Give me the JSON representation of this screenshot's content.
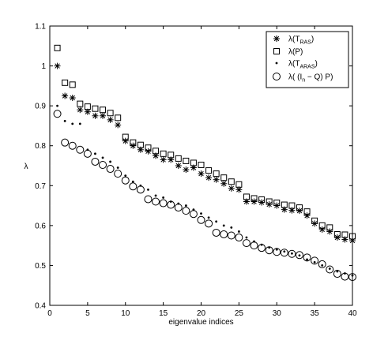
{
  "chart_data": {
    "type": "scatter",
    "title": "",
    "xlabel": "eigenvalue indices",
    "ylabel": "λ",
    "xlim": [
      0,
      40
    ],
    "ylim": [
      0.4,
      1.1
    ],
    "x_ticks": [
      "0",
      "5",
      "10",
      "15",
      "20",
      "25",
      "30",
      "35",
      "40"
    ],
    "y_ticks": [
      "0.4",
      "0.5",
      "0.6",
      "0.7",
      "0.8",
      "0.9",
      "1",
      "1.1"
    ],
    "grid": false,
    "legend_position": "top-right",
    "x": [
      1,
      2,
      3,
      4,
      5,
      6,
      7,
      8,
      9,
      10,
      11,
      12,
      13,
      14,
      15,
      16,
      17,
      18,
      19,
      20,
      21,
      22,
      23,
      24,
      25,
      26,
      27,
      28,
      29,
      30,
      31,
      32,
      33,
      34,
      35,
      36,
      37,
      38,
      39,
      40
    ],
    "series": [
      {
        "name": "λ(T_RAS)",
        "legend_main": "λ(T",
        "legend_sub": "RAS",
        "legend_tail": ")",
        "marker": "asterisk",
        "values": [
          1.0,
          0.925,
          0.92,
          0.89,
          0.885,
          0.875,
          0.875,
          0.865,
          0.852,
          0.812,
          0.8,
          0.79,
          0.786,
          0.775,
          0.765,
          0.765,
          0.75,
          0.74,
          0.745,
          0.73,
          0.72,
          0.715,
          0.705,
          0.693,
          0.69,
          0.66,
          0.66,
          0.658,
          0.653,
          0.65,
          0.64,
          0.638,
          0.637,
          0.625,
          0.605,
          0.59,
          0.585,
          0.57,
          0.565,
          0.562
        ]
      },
      {
        "name": "λ(P)",
        "legend_main": "λ(P)",
        "legend_sub": "",
        "legend_tail": "",
        "marker": "square",
        "values": [
          1.045,
          0.958,
          0.953,
          0.905,
          0.898,
          0.893,
          0.89,
          0.882,
          0.87,
          0.822,
          0.808,
          0.802,
          0.795,
          0.787,
          0.78,
          0.777,
          0.768,
          0.762,
          0.757,
          0.752,
          0.738,
          0.73,
          0.72,
          0.71,
          0.703,
          0.672,
          0.668,
          0.665,
          0.66,
          0.657,
          0.652,
          0.65,
          0.645,
          0.635,
          0.612,
          0.6,
          0.595,
          0.578,
          0.577,
          0.573
        ]
      },
      {
        "name": "λ(T_ARAS)",
        "legend_main": "λ(T",
        "legend_sub": "ARAS",
        "legend_tail": ")",
        "marker": "dot",
        "values": [
          0.9,
          0.862,
          0.855,
          0.855,
          0.79,
          0.78,
          0.77,
          0.76,
          0.745,
          0.725,
          0.71,
          0.7,
          0.69,
          0.675,
          0.67,
          0.66,
          0.655,
          0.65,
          0.64,
          0.63,
          0.62,
          0.61,
          0.6,
          0.595,
          0.585,
          0.57,
          0.56,
          0.552,
          0.545,
          0.54,
          0.535,
          0.53,
          0.525,
          0.515,
          0.508,
          0.5,
          0.492,
          0.485,
          0.48,
          0.475
        ]
      },
      {
        "name": "λ((I_n − Q) P)",
        "legend_main": "λ( (I",
        "legend_sub": "n",
        "legend_tail": " − Q) P)",
        "marker": "circle",
        "values": [
          0.88,
          0.808,
          0.8,
          0.79,
          0.78,
          0.76,
          0.752,
          0.742,
          0.73,
          0.713,
          0.698,
          0.69,
          0.666,
          0.66,
          0.656,
          0.652,
          0.645,
          0.637,
          0.629,
          0.614,
          0.605,
          0.582,
          0.578,
          0.575,
          0.57,
          0.556,
          0.55,
          0.544,
          0.538,
          0.534,
          0.532,
          0.529,
          0.526,
          0.52,
          0.512,
          0.503,
          0.49,
          0.479,
          0.472,
          0.471
        ]
      }
    ]
  }
}
